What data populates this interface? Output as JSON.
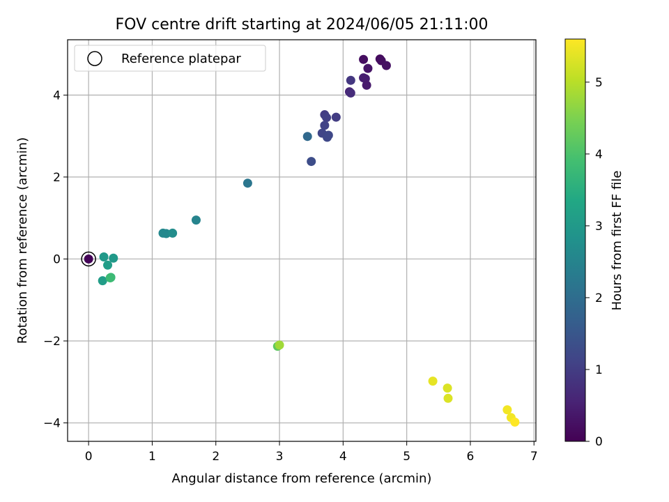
{
  "chart_data": {
    "type": "scatter",
    "title": "FOV centre drift starting at 2024/06/05 21:11:00",
    "xlabel": "Angular distance from reference (arcmin)",
    "ylabel": "Rotation from reference (arcmin)",
    "xlim": [
      -0.33,
      7.03
    ],
    "ylim": [
      -4.45,
      5.35
    ],
    "x_ticks": [
      0,
      1,
      2,
      3,
      4,
      5,
      6,
      7
    ],
    "y_ticks": [
      -4,
      -2,
      0,
      2,
      4
    ],
    "grid": true,
    "legend": {
      "placement": "upper-left",
      "entries": [
        "Reference platepar"
      ]
    },
    "reference_point": {
      "x": 0,
      "y": 0
    },
    "colorbar": {
      "label": "Hours from first FF file",
      "range": [
        0,
        5.6
      ],
      "ticks": [
        0,
        1,
        2,
        3,
        4,
        5
      ],
      "colormap": "viridis"
    },
    "points": [
      {
        "x": 0.0,
        "y": 0.0,
        "c": 0.05
      },
      {
        "x": 4.32,
        "y": 4.87,
        "c": 0.2
      },
      {
        "x": 4.58,
        "y": 4.88,
        "c": 0.15
      },
      {
        "x": 4.6,
        "y": 4.84,
        "c": 0.2
      },
      {
        "x": 4.68,
        "y": 4.72,
        "c": 0.25
      },
      {
        "x": 4.39,
        "y": 4.65,
        "c": 0.3
      },
      {
        "x": 4.32,
        "y": 4.42,
        "c": 0.5
      },
      {
        "x": 4.35,
        "y": 4.4,
        "c": 0.45
      },
      {
        "x": 4.37,
        "y": 4.24,
        "c": 0.4
      },
      {
        "x": 4.12,
        "y": 4.36,
        "c": 0.9
      },
      {
        "x": 4.1,
        "y": 4.08,
        "c": 0.6
      },
      {
        "x": 4.12,
        "y": 4.05,
        "c": 0.7
      },
      {
        "x": 3.71,
        "y": 3.52,
        "c": 1.0
      },
      {
        "x": 3.74,
        "y": 3.45,
        "c": 1.05
      },
      {
        "x": 3.89,
        "y": 3.46,
        "c": 1.0
      },
      {
        "x": 3.71,
        "y": 3.26,
        "c": 1.1
      },
      {
        "x": 3.67,
        "y": 3.07,
        "c": 1.15
      },
      {
        "x": 3.77,
        "y": 3.02,
        "c": 1.2
      },
      {
        "x": 3.75,
        "y": 2.97,
        "c": 1.2
      },
      {
        "x": 3.44,
        "y": 2.99,
        "c": 1.9
      },
      {
        "x": 3.5,
        "y": 2.38,
        "c": 1.3
      },
      {
        "x": 2.5,
        "y": 1.85,
        "c": 2.2
      },
      {
        "x": 1.69,
        "y": 0.95,
        "c": 2.5
      },
      {
        "x": 1.17,
        "y": 0.63,
        "c": 2.6
      },
      {
        "x": 1.22,
        "y": 0.62,
        "c": 2.6
      },
      {
        "x": 1.32,
        "y": 0.63,
        "c": 2.7
      },
      {
        "x": 0.24,
        "y": 0.05,
        "c": 3.0
      },
      {
        "x": 0.39,
        "y": 0.02,
        "c": 3.0
      },
      {
        "x": 0.3,
        "y": -0.15,
        "c": 3.1
      },
      {
        "x": 0.22,
        "y": -0.53,
        "c": 3.1
      },
      {
        "x": 0.35,
        "y": -0.45,
        "c": 3.7
      },
      {
        "x": 0.34,
        "y": -0.46,
        "c": 3.8
      },
      {
        "x": 2.97,
        "y": -2.13,
        "c": 4.2
      },
      {
        "x": 3.0,
        "y": -2.1,
        "c": 4.8
      },
      {
        "x": 5.41,
        "y": -2.98,
        "c": 5.4
      },
      {
        "x": 5.64,
        "y": -3.15,
        "c": 5.3
      },
      {
        "x": 5.65,
        "y": -3.4,
        "c": 5.3
      },
      {
        "x": 6.58,
        "y": -3.68,
        "c": 5.5
      },
      {
        "x": 6.64,
        "y": -3.87,
        "c": 5.5
      },
      {
        "x": 6.7,
        "y": -3.98,
        "c": 5.6
      }
    ]
  }
}
